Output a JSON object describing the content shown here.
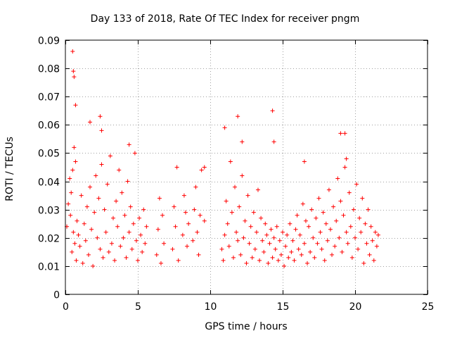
{
  "chart_data": {
    "type": "scatter",
    "title": "Day 133 of 2018, Rate Of TEC Index for receiver pngm",
    "xlabel": "GPS time / hours",
    "ylabel": "ROTI / TECUs",
    "xlim": [
      0,
      25
    ],
    "ylim": [
      0,
      0.09
    ],
    "xticks": [
      0,
      5,
      10,
      15,
      20,
      25
    ],
    "xtick_labels": [
      "0",
      "5",
      "10",
      "15",
      "20",
      "25"
    ],
    "yticks": [
      0,
      0.01,
      0.02,
      0.03,
      0.04,
      0.05,
      0.06,
      0.07,
      0.08,
      0.09
    ],
    "ytick_labels": [
      "0",
      "0.01",
      "0.02",
      "0.03",
      "0.04",
      "0.05",
      "0.06",
      "0.07",
      "0.08",
      "0.09"
    ],
    "grid": true,
    "marker": "+",
    "color": "#ff0000",
    "series": [
      {
        "name": "ROTI",
        "x": [
          0.1,
          0.2,
          0.3,
          0.35,
          0.4,
          0.45,
          0.5,
          0.55,
          0.6,
          0.65,
          0.7,
          0.75,
          0.8,
          0.9,
          1.0,
          1.1,
          1.2,
          1.3,
          1.4,
          1.5,
          1.6,
          1.7,
          1.8,
          1.9,
          2.0,
          2.1,
          2.2,
          2.3,
          2.4,
          2.5,
          2.6,
          2.7,
          2.8,
          2.9,
          3.0,
          3.1,
          3.2,
          3.3,
          3.4,
          3.5,
          3.6,
          3.7,
          3.8,
          3.9,
          4.0,
          4.1,
          4.2,
          4.3,
          4.4,
          4.5,
          4.6,
          4.7,
          4.8,
          4.9,
          5.0,
          5.1,
          5.2,
          5.3,
          5.4,
          5.5,
          5.6,
          6.3,
          6.4,
          6.5,
          6.6,
          6.7,
          6.8,
          7.4,
          7.5,
          7.6,
          7.7,
          7.8,
          8.1,
          8.2,
          8.3,
          8.4,
          8.5,
          8.8,
          8.9,
          9.0,
          9.1,
          9.2,
          9.3,
          9.4,
          9.6,
          10.8,
          10.9,
          11.0,
          11.1,
          11.2,
          11.3,
          11.4,
          11.5,
          11.6,
          11.7,
          11.8,
          11.9,
          12.0,
          12.1,
          12.2,
          12.3,
          12.4,
          12.5,
          12.6,
          12.7,
          12.8,
          12.9,
          13.0,
          13.1,
          13.2,
          13.3,
          13.4,
          13.5,
          13.6,
          13.7,
          13.8,
          13.9,
          14.0,
          14.1,
          14.2,
          14.3,
          14.4,
          14.5,
          14.6,
          14.7,
          14.8,
          14.9,
          15.0,
          15.1,
          15.2,
          15.3,
          15.4,
          15.5,
          15.6,
          15.7,
          15.8,
          15.9,
          16.0,
          16.1,
          16.2,
          16.3,
          16.4,
          16.5,
          16.6,
          16.7,
          16.8,
          16.9,
          17.0,
          17.1,
          17.2,
          17.3,
          17.4,
          17.5,
          17.6,
          17.7,
          17.8,
          17.9,
          18.0,
          18.1,
          18.2,
          18.3,
          18.4,
          18.5,
          18.6,
          18.7,
          18.8,
          18.9,
          19.0,
          19.1,
          19.2,
          19.3,
          19.4,
          19.5,
          19.6,
          19.7,
          19.8,
          19.9,
          20.0,
          20.1,
          20.2,
          20.3,
          20.4,
          20.5,
          20.6,
          20.7,
          20.8,
          20.9,
          21.0,
          21.1,
          21.2,
          21.3,
          21.4,
          21.5,
          21.6,
          0.5,
          0.55,
          0.6,
          0.7,
          2.4,
          2.5,
          1.7,
          4.4,
          9.6,
          11.0,
          11.9,
          12.2,
          14.3,
          14.4,
          16.5,
          19.0,
          19.3,
          19.4
        ],
        "y": [
          0.024,
          0.032,
          0.041,
          0.028,
          0.036,
          0.015,
          0.044,
          0.022,
          0.052,
          0.018,
          0.047,
          0.012,
          0.026,
          0.021,
          0.017,
          0.035,
          0.011,
          0.025,
          0.019,
          0.031,
          0.014,
          0.038,
          0.023,
          0.01,
          0.029,
          0.042,
          0.02,
          0.034,
          0.016,
          0.046,
          0.013,
          0.03,
          0.022,
          0.039,
          0.015,
          0.049,
          0.018,
          0.027,
          0.012,
          0.033,
          0.024,
          0.044,
          0.017,
          0.036,
          0.02,
          0.028,
          0.013,
          0.04,
          0.022,
          0.031,
          0.016,
          0.025,
          0.05,
          0.019,
          0.012,
          0.027,
          0.021,
          0.015,
          0.03,
          0.018,
          0.024,
          0.014,
          0.023,
          0.034,
          0.011,
          0.028,
          0.018,
          0.016,
          0.031,
          0.024,
          0.045,
          0.012,
          0.021,
          0.035,
          0.029,
          0.017,
          0.025,
          0.019,
          0.03,
          0.038,
          0.022,
          0.014,
          0.028,
          0.044,
          0.026,
          0.016,
          0.012,
          0.021,
          0.033,
          0.025,
          0.017,
          0.047,
          0.029,
          0.013,
          0.038,
          0.022,
          0.019,
          0.031,
          0.014,
          0.042,
          0.02,
          0.026,
          0.011,
          0.035,
          0.018,
          0.024,
          0.013,
          0.029,
          0.016,
          0.022,
          0.037,
          0.012,
          0.027,
          0.019,
          0.015,
          0.025,
          0.021,
          0.011,
          0.018,
          0.023,
          0.013,
          0.02,
          0.016,
          0.024,
          0.012,
          0.019,
          0.014,
          0.022,
          0.01,
          0.017,
          0.021,
          0.013,
          0.025,
          0.015,
          0.019,
          0.012,
          0.023,
          0.028,
          0.016,
          0.021,
          0.014,
          0.032,
          0.018,
          0.026,
          0.011,
          0.024,
          0.015,
          0.03,
          0.02,
          0.013,
          0.027,
          0.018,
          0.034,
          0.022,
          0.016,
          0.029,
          0.012,
          0.025,
          0.019,
          0.037,
          0.023,
          0.014,
          0.031,
          0.017,
          0.026,
          0.041,
          0.02,
          0.033,
          0.015,
          0.028,
          0.045,
          0.022,
          0.018,
          0.036,
          0.024,
          0.013,
          0.03,
          0.02,
          0.039,
          0.016,
          0.027,
          0.022,
          0.034,
          0.011,
          0.025,
          0.018,
          0.03,
          0.014,
          0.024,
          0.019,
          0.012,
          0.022,
          0.017,
          0.021,
          0.086,
          0.079,
          0.077,
          0.067,
          0.063,
          0.058,
          0.061,
          0.053,
          0.045,
          0.059,
          0.063,
          0.054,
          0.065,
          0.054,
          0.047,
          0.057,
          0.057,
          0.048
        ],
        "description": "dense cloud of ROTI values per receiver-satellite pair over the day; only representative points listed"
      }
    ]
  }
}
